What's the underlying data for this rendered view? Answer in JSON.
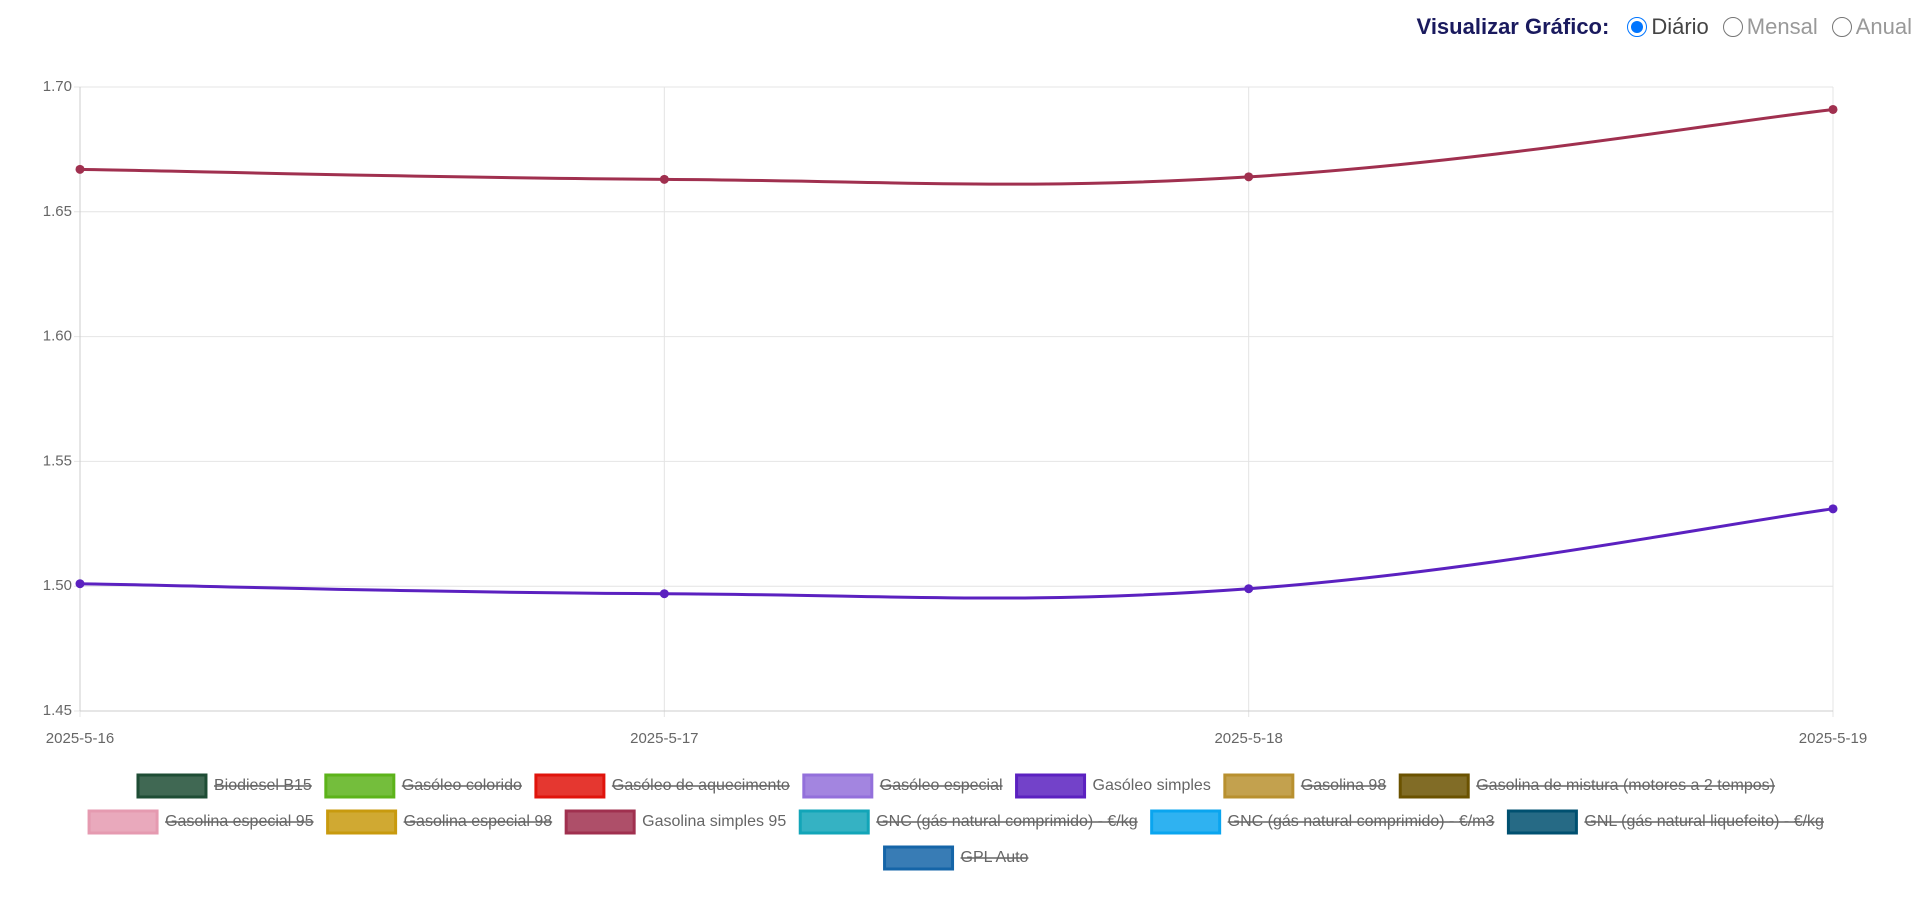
{
  "controls": {
    "label": "Visualizar Gráfico:",
    "options": [
      "Diário",
      "Mensal",
      "Anual"
    ],
    "selected": 0
  },
  "chart_data": {
    "type": "line",
    "categories": [
      "2025-5-16",
      "2025-5-17",
      "2025-5-18",
      "2025-5-19"
    ],
    "ylim": [
      1.45,
      1.7
    ],
    "yticks": [
      {
        "value": 1.45,
        "label": "1.45"
      },
      {
        "value": 1.5,
        "label": "1.50"
      },
      {
        "value": 1.55,
        "label": "1.55"
      },
      {
        "value": 1.6,
        "label": "1.60"
      },
      {
        "value": 1.65,
        "label": "1.65"
      },
      {
        "value": 1.7,
        "label": "1.70"
      }
    ],
    "grid": true,
    "legend": "bottom",
    "series": [
      {
        "name": "Biodiesel B15",
        "color": "#1e4d35",
        "hidden": true,
        "values": [
          null,
          null,
          null,
          null
        ]
      },
      {
        "name": "Gasóleo colorido",
        "color": "#5cb31a",
        "hidden": true,
        "values": [
          null,
          null,
          null,
          null
        ]
      },
      {
        "name": "Gasóleo de aquecimento",
        "color": "#e0140c",
        "hidden": true,
        "values": [
          null,
          null,
          null,
          null
        ]
      },
      {
        "name": "Gasóleo especial",
        "color": "#9370db",
        "hidden": true,
        "values": [
          null,
          null,
          null,
          null
        ]
      },
      {
        "name": "Gasóleo simples",
        "color": "#5b21c0",
        "hidden": false,
        "values": [
          1.501,
          1.497,
          1.499,
          1.531
        ]
      },
      {
        "name": "Gasolina 98",
        "color": "#b8902f",
        "hidden": true,
        "values": [
          null,
          null,
          null,
          null
        ]
      },
      {
        "name": "Gasolina de mistura (motores a 2 tempos)",
        "color": "#6b5200",
        "hidden": true,
        "values": [
          null,
          null,
          null,
          null
        ]
      },
      {
        "name": "Gasolina especial 95",
        "color": "#e59ab0",
        "hidden": true,
        "values": [
          null,
          null,
          null,
          null
        ]
      },
      {
        "name": "Gasolina especial 98",
        "color": "#c89a0e",
        "hidden": true,
        "values": [
          null,
          null,
          null,
          null
        ]
      },
      {
        "name": "Gasolina simples 95",
        "color": "#a0304f",
        "hidden": false,
        "values": [
          1.667,
          1.663,
          1.664,
          1.691
        ]
      },
      {
        "name": "GNC (gás natural comprimido) - €/kg",
        "color": "#12a5b8",
        "hidden": true,
        "values": [
          null,
          null,
          null,
          null
        ]
      },
      {
        "name": "GNC (gás natural comprimido) - €/m3",
        "color": "#0aa5ef",
        "hidden": true,
        "values": [
          null,
          null,
          null,
          null
        ]
      },
      {
        "name": "GNL (gás natural liquefeito) - €/kg",
        "color": "#005070",
        "hidden": true,
        "values": [
          null,
          null,
          null,
          null
        ]
      },
      {
        "name": "GPL Auto",
        "color": "#1565a8",
        "hidden": true,
        "values": [
          null,
          null,
          null,
          null
        ]
      }
    ]
  }
}
